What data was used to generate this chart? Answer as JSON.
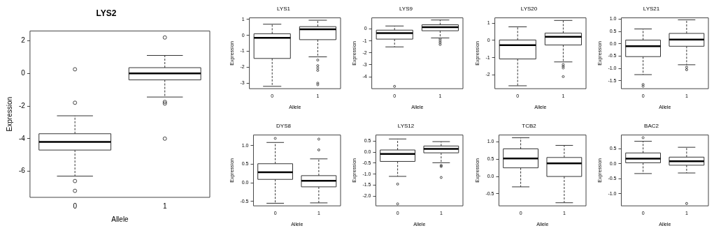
{
  "chart_data": [
    {
      "type": "box",
      "title": "LYS2",
      "xlabel": "Allele",
      "ylabel": "Expression",
      "categories": [
        "0",
        "1"
      ],
      "ylim": [
        -7.6,
        2.6
      ],
      "yticks": [
        -6,
        -4,
        -2,
        0,
        2
      ],
      "grid": false,
      "legend": false,
      "boxes": [
        {
          "low": -6.3,
          "q1": -4.7,
          "median": -4.2,
          "q3": -3.7,
          "high": -2.6,
          "outliers": [
            0.25,
            -1.8,
            -6.6,
            -7.2
          ]
        },
        {
          "low": -1.45,
          "q1": -0.4,
          "median": 0,
          "q3": 0.35,
          "high": 1.1,
          "outliers": [
            2.2,
            -1.75,
            -1.85,
            -4.0
          ]
        }
      ]
    },
    {
      "type": "box",
      "title": "LYS1",
      "xlabel": "Allele",
      "ylabel": "Expression",
      "categories": [
        "0",
        "1"
      ],
      "ylim": [
        -3.35,
        1.1
      ],
      "yticks": [
        -3,
        -2,
        -1,
        0,
        1
      ],
      "grid": false,
      "legend": false,
      "boxes": [
        {
          "low": -3.2,
          "q1": -1.45,
          "median": -0.15,
          "q3": 0.1,
          "high": 0.7
        },
        {
          "low": -1.35,
          "q1": -0.27,
          "median": 0.38,
          "q3": 0.55,
          "high": 0.95,
          "outliers": [
            -1.55,
            -1.9,
            -2.05,
            -2.2,
            -3.0,
            -3.1
          ]
        }
      ]
    },
    {
      "type": "box",
      "title": "LYS9",
      "xlabel": "Allele",
      "ylabel": "Expression",
      "categories": [
        "0",
        "1"
      ],
      "ylim": [
        -5.0,
        0.93
      ],
      "yticks": [
        -4,
        -3,
        -2,
        -1,
        0
      ],
      "grid": false,
      "legend": false,
      "boxes": [
        {
          "low": -1.5,
          "q1": -0.85,
          "median": -0.35,
          "q3": -0.1,
          "high": 0.25,
          "outliers": [
            -4.8
          ]
        },
        {
          "low": -0.75,
          "q1": -0.15,
          "median": 0.15,
          "q3": 0.35,
          "high": 0.75,
          "outliers": [
            -0.85,
            -1.0,
            -1.15,
            -1.3
          ]
        }
      ]
    },
    {
      "type": "box",
      "title": "LYS20",
      "xlabel": "Allele",
      "ylabel": "Expression",
      "categories": [
        "0",
        "1"
      ],
      "ylim": [
        -2.8,
        1.3
      ],
      "yticks": [
        -2,
        -1,
        0,
        1
      ],
      "grid": false,
      "legend": false,
      "boxes": [
        {
          "low": -2.63,
          "q1": -1.08,
          "median": -0.28,
          "q3": 0.02,
          "high": 0.78
        },
        {
          "low": -1.25,
          "q1": -0.27,
          "median": 0.2,
          "q3": 0.42,
          "high": 1.15,
          "outliers": [
            -1.4,
            -1.5,
            -1.6,
            -2.1
          ]
        }
      ]
    },
    {
      "type": "box",
      "title": "LYS21",
      "xlabel": "Allele",
      "ylabel": "Expression",
      "categories": [
        "0",
        "1"
      ],
      "ylim": [
        -1.82,
        1.05
      ],
      "yticks": [
        -1.5,
        {
          "value": -1,
          "label": "-1.0"
        },
        -0.5,
        {
          "value": 0,
          "label": "0.0"
        },
        0.5,
        {
          "value": 1,
          "label": "1.0"
        }
      ],
      "grid": false,
      "legend": false,
      "boxes": [
        {
          "low": -1.25,
          "q1": -0.52,
          "median": -0.1,
          "q3": 0.15,
          "high": 0.6,
          "outliers": [
            -1.65,
            -1.72
          ]
        },
        {
          "low": -0.85,
          "q1": -0.1,
          "median": 0.17,
          "q3": 0.42,
          "high": 0.97,
          "outliers": [
            -0.95,
            -1.05
          ]
        }
      ]
    },
    {
      "type": "box",
      "title": "DYS8",
      "xlabel": "Allele",
      "ylabel": "Expression",
      "categories": [
        "0",
        "1"
      ],
      "ylim": [
        -0.62,
        1.28
      ],
      "yticks": [
        -0.5,
        {
          "value": 0,
          "label": "0.0"
        },
        0.5,
        {
          "value": 1,
          "label": "1.0"
        }
      ],
      "grid": false,
      "legend": false,
      "boxes": [
        {
          "low": -0.55,
          "q1": 0.09,
          "median": 0.28,
          "q3": 0.51,
          "high": 1.08,
          "outliers": [
            1.19
          ]
        },
        {
          "low": -0.54,
          "q1": -0.11,
          "median": 0.05,
          "q3": 0.19,
          "high": 0.64,
          "outliers": [
            1.17,
            0.88
          ]
        }
      ]
    },
    {
      "type": "box",
      "title": "LYS12",
      "xlabel": "Allele",
      "ylabel": "Expression",
      "categories": [
        "0",
        "1"
      ],
      "ylim": [
        -2.44,
        0.78
      ],
      "yticks": [
        {
          "value": -2,
          "label": "-2.0"
        },
        -1.5,
        {
          "value": -1,
          "label": "-1.0"
        },
        -0.5,
        {
          "value": 0,
          "label": "0.0"
        },
        0.5
      ],
      "grid": false,
      "legend": false,
      "boxes": [
        {
          "low": -1.1,
          "q1": -0.42,
          "median": -0.08,
          "q3": 0.1,
          "high": 0.6,
          "outliers": [
            -1.45,
            -2.35
          ]
        },
        {
          "low": -0.48,
          "q1": -0.03,
          "median": 0.15,
          "q3": 0.28,
          "high": 0.48,
          "outliers": [
            -0.6,
            -0.65,
            -1.15
          ]
        }
      ]
    },
    {
      "type": "box",
      "title": "TCB2",
      "xlabel": "Allele",
      "ylabel": "Expression",
      "categories": [
        "0",
        "1"
      ],
      "ylim": [
        -0.85,
        1.2
      ],
      "yticks": [
        -0.5,
        {
          "value": 0,
          "label": "0.0"
        },
        0.5,
        {
          "value": 1,
          "label": "1.0"
        }
      ],
      "grid": false,
      "legend": false,
      "boxes": [
        {
          "low": -0.3,
          "q1": 0.25,
          "median": 0.52,
          "q3": 0.8,
          "high": 1.12
        },
        {
          "low": -0.76,
          "q1": 0.0,
          "median": 0.38,
          "q3": 0.55,
          "high": 0.9
        }
      ]
    },
    {
      "type": "box",
      "title": "BAC2",
      "xlabel": "Allele",
      "ylabel": "Expression",
      "categories": [
        "0",
        "1"
      ],
      "ylim": [
        -1.41,
        0.96
      ],
      "yticks": [
        {
          "value": -1,
          "label": "-1.0"
        },
        -0.5,
        {
          "value": 0,
          "label": "0.0"
        },
        0.5
      ],
      "grid": false,
      "legend": false,
      "boxes": [
        {
          "low": -0.33,
          "q1": 0.03,
          "median": 0.17,
          "q3": 0.36,
          "high": 0.75,
          "outliers": [
            0.87
          ]
        },
        {
          "low": -0.31,
          "q1": -0.05,
          "median": 0.08,
          "q3": 0.22,
          "high": 0.55,
          "outliers": [
            -1.33
          ]
        }
      ]
    }
  ]
}
